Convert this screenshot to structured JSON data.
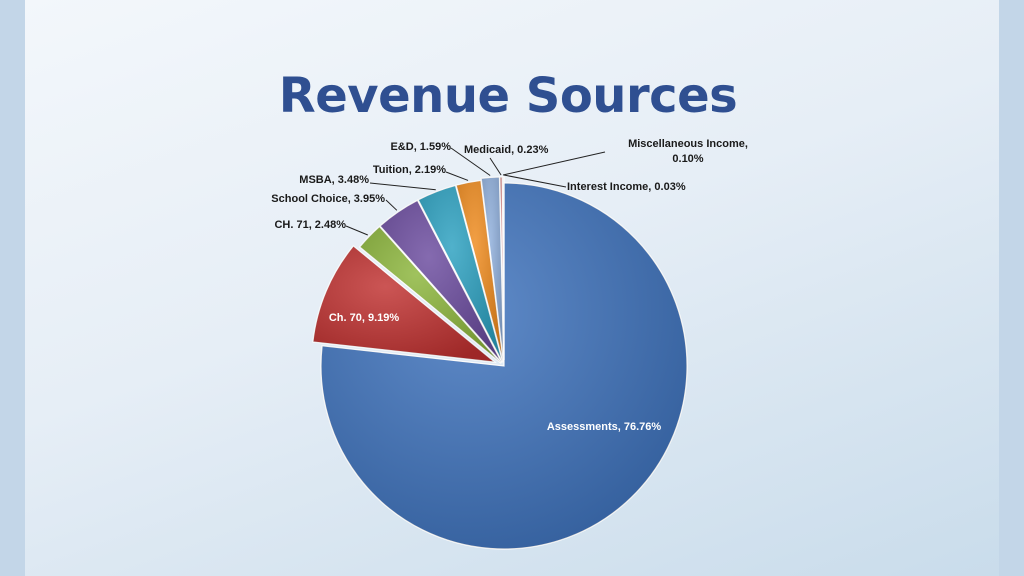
{
  "slide": {
    "title": "Revenue Sources"
  },
  "chart_data": {
    "type": "pie",
    "title": "",
    "slices": [
      {
        "label": "Assessments, 76.76%",
        "name": "Assessments",
        "value": 76.76,
        "color": "#3d72bd"
      },
      {
        "label": "Ch. 70, 9.19%",
        "name": "Ch. 70",
        "value": 9.19,
        "color": "#c0302f"
      },
      {
        "label": "CH. 71, 2.48%",
        "name": "CH. 71",
        "value": 2.48,
        "color": "#8bb53a"
      },
      {
        "label": "School Choice, 3.95%",
        "name": "School Choice",
        "value": 3.95,
        "color": "#6a4a9e"
      },
      {
        "label": "MSBA, 3.48%",
        "name": "MSBA",
        "value": 3.48,
        "color": "#2aa0c0"
      },
      {
        "label": "Tuition, 2.19%",
        "name": "Tuition",
        "value": 2.19,
        "color": "#ef8a1c"
      },
      {
        "label": "E&D, 1.59%",
        "name": "E&D",
        "value": 1.59,
        "color": "#8eaedb"
      },
      {
        "label": "Medicaid, 0.23%",
        "name": "Medicaid",
        "value": 0.23,
        "color": "#d98c8a"
      },
      {
        "label": "Miscellaneous Income, 0.10%",
        "name": "Miscellaneous Income",
        "value": 0.1,
        "color": "#b5d08a"
      },
      {
        "label": "Interest Income, 0.03%",
        "name": "Interest Income",
        "value": 0.03,
        "color": "#a896c7"
      }
    ]
  }
}
